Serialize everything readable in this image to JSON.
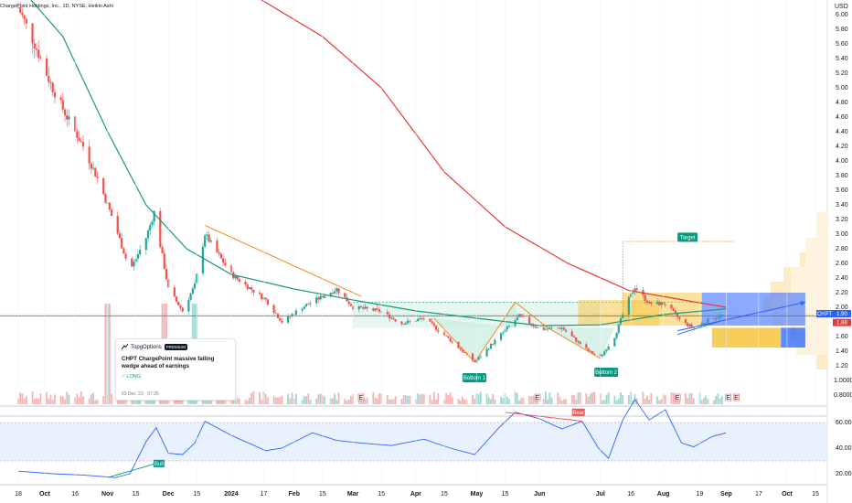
{
  "header": {
    "title": "ChargePoint Holdings, Inc., 1D, NYSE, Heikin Ashi"
  },
  "price_axis": {
    "currency": "USD",
    "labels": [
      "6.00",
      "5.80",
      "5.60",
      "5.40",
      "5.20",
      "5.00",
      "4.80",
      "4.60",
      "4.40",
      "4.20",
      "4.00",
      "3.80",
      "3.60",
      "3.40",
      "3.20",
      "3.00",
      "2.80",
      "2.60",
      "2.40",
      "2.20",
      "2.00",
      "1.80",
      "1.60",
      "1.40",
      "1.20"
    ]
  },
  "volume_axis": {
    "labels": [
      "1.0000",
      "0.8000"
    ]
  },
  "rsi_axis": {
    "labels": [
      "60.00",
      "40.00",
      "20.00"
    ]
  },
  "time_axis": {
    "labels": [
      "18",
      "Oct",
      "16",
      "Nov",
      "15",
      "Dec",
      "15",
      "2024",
      "17",
      "Feb",
      "15",
      "Mar",
      "15",
      "Apr",
      "15",
      "May",
      "15",
      "Jun",
      "Jul",
      "16",
      "Aug",
      "19",
      "Sep",
      "17",
      "Oct",
      "15"
    ]
  },
  "tags": {
    "ticker": "CHPT",
    "last_price": "1.90",
    "ref_price": "1.88"
  },
  "annotations": {
    "target": "Target",
    "bottom1": "Bottom 1",
    "bottom2": "Bottom 2",
    "bear": "Bear",
    "bull": "Bull"
  },
  "event_flags": [
    "E",
    "E",
    "E",
    "E",
    "E",
    "E"
  ],
  "idea_card": {
    "brand": "TopgOptions",
    "badge": "PREMIUM",
    "title": "CHPT ChargePoint  massive falling wedge ahead of earnings",
    "direction": "LONG",
    "date": "03 Dec '23 · 07:26"
  },
  "colors": {
    "up": "#26a69a",
    "down": "#ef5350",
    "ma_fast": "#1b9a7d",
    "ma_slow": "#e53935",
    "wedge": "#f57c00",
    "rsi": "#2962ff"
  },
  "chart_data": [
    {
      "type": "candlestick",
      "title": "",
      "x_range": [
        "2023-09-18",
        "2024-10-15"
      ],
      "ylim": [
        1.1,
        6.45
      ],
      "y_ticks": [
        6.0,
        5.8,
        5.6,
        5.4,
        5.2,
        5.0,
        4.8,
        4.6,
        4.4,
        4.2,
        4.0,
        3.8,
        3.6,
        3.4,
        3.2,
        3.0,
        2.8,
        2.6,
        2.4,
        2.2,
        2.0,
        1.8,
        1.6,
        1.4,
        1.2
      ],
      "close_path": [
        [
          "2023-09-18",
          6.1
        ],
        [
          "2023-09-26",
          5.6
        ],
        [
          "2023-10-04",
          5.05
        ],
        [
          "2023-10-12",
          4.6
        ],
        [
          "2023-10-20",
          4.2
        ],
        [
          "2023-10-28",
          3.7
        ],
        [
          "2023-11-05",
          3.1
        ],
        [
          "2023-11-12",
          2.5
        ],
        [
          "2023-11-20",
          2.95
        ],
        [
          "2023-11-24",
          3.3
        ],
        [
          "2023-12-01",
          2.25
        ],
        [
          "2023-12-08",
          1.95
        ],
        [
          "2023-12-14",
          2.3
        ],
        [
          "2023-12-19",
          3.0
        ],
        [
          "2024-01-01",
          2.45
        ],
        [
          "2024-01-18",
          2.1
        ],
        [
          "2024-01-26",
          1.8
        ],
        [
          "2024-02-05",
          2.0
        ],
        [
          "2024-02-15",
          2.15
        ],
        [
          "2024-02-22",
          2.25
        ],
        [
          "2024-03-01",
          2.0
        ],
        [
          "2024-03-14",
          1.95
        ],
        [
          "2024-03-25",
          1.78
        ],
        [
          "2024-04-05",
          1.85
        ],
        [
          "2024-04-18",
          1.55
        ],
        [
          "2024-04-30",
          1.25
        ],
        [
          "2024-05-12",
          1.6
        ],
        [
          "2024-05-22",
          1.88
        ],
        [
          "2024-06-01",
          1.7
        ],
        [
          "2024-06-12",
          1.72
        ],
        [
          "2024-06-25",
          1.4
        ],
        [
          "2024-07-01",
          1.32
        ],
        [
          "2024-07-08",
          1.6
        ],
        [
          "2024-07-14",
          2.05
        ],
        [
          "2024-07-18",
          2.28
        ],
        [
          "2024-07-25",
          2.05
        ],
        [
          "2024-08-02",
          2.05
        ],
        [
          "2024-08-10",
          1.8
        ],
        [
          "2024-08-16",
          1.72
        ],
        [
          "2024-08-25",
          1.85
        ],
        [
          "2024-09-01",
          1.9
        ]
      ],
      "moving_averages": [
        {
          "color": "#1b9a7d",
          "points": [
            [
              "2023-09-18",
              6.4
            ],
            [
              "2023-10-10",
              5.7
            ],
            [
              "2023-11-01",
              4.4
            ],
            [
              "2023-11-20",
              3.4
            ],
            [
              "2023-12-10",
              2.8
            ],
            [
              "2024-01-01",
              2.45
            ],
            [
              "2024-02-01",
              2.25
            ],
            [
              "2024-03-01",
              2.1
            ],
            [
              "2024-04-01",
              1.95
            ],
            [
              "2024-05-01",
              1.85
            ],
            [
              "2024-06-01",
              1.75
            ],
            [
              "2024-07-01",
              1.76
            ],
            [
              "2024-08-01",
              1.9
            ],
            [
              "2024-09-01",
              1.98
            ]
          ]
        },
        {
          "color": "#e53935",
          "points": [
            [
              "2024-01-01",
              6.45
            ],
            [
              "2024-02-15",
              5.7
            ],
            [
              "2024-03-15",
              5.0
            ],
            [
              "2024-04-15",
              3.85
            ],
            [
              "2024-05-15",
              3.1
            ],
            [
              "2024-06-15",
              2.6
            ],
            [
              "2024-07-15",
              2.23
            ],
            [
              "2024-08-15",
              2.08
            ],
            [
              "2024-09-01",
              2.0
            ]
          ]
        }
      ],
      "volume_spikes": [
        "2023-11-01",
        "2023-11-29",
        "2023-12-14"
      ],
      "rsi": {
        "ylim": [
          15,
          80
        ],
        "points": [
          [
            "2023-09-18",
            22
          ],
          [
            "2023-10-05",
            20
          ],
          [
            "2023-10-20",
            19
          ],
          [
            "2023-11-05",
            17
          ],
          [
            "2023-11-12",
            20
          ],
          [
            "2023-11-20",
            45
          ],
          [
            "2023-11-25",
            56
          ],
          [
            "2023-12-01",
            36
          ],
          [
            "2023-12-08",
            35
          ],
          [
            "2023-12-14",
            44
          ],
          [
            "2023-12-19",
            61
          ],
          [
            "2024-01-01",
            50
          ],
          [
            "2024-01-18",
            38
          ],
          [
            "2024-01-26",
            40
          ],
          [
            "2024-02-10",
            52
          ],
          [
            "2024-02-22",
            46
          ],
          [
            "2024-03-05",
            44
          ],
          [
            "2024-03-20",
            42
          ],
          [
            "2024-04-05",
            47
          ],
          [
            "2024-04-18",
            40
          ],
          [
            "2024-04-30",
            35
          ],
          [
            "2024-05-12",
            56
          ],
          [
            "2024-05-20",
            68
          ],
          [
            "2024-06-01",
            63
          ],
          [
            "2024-06-12",
            55
          ],
          [
            "2024-06-22",
            61
          ],
          [
            "2024-06-30",
            40
          ],
          [
            "2024-07-05",
            32
          ],
          [
            "2024-07-12",
            62
          ],
          [
            "2024-07-18",
            78
          ],
          [
            "2024-07-25",
            62
          ],
          [
            "2024-08-02",
            70
          ],
          [
            "2024-08-10",
            44
          ],
          [
            "2024-08-16",
            41
          ],
          [
            "2024-08-25",
            49
          ],
          [
            "2024-09-01",
            52
          ]
        ]
      }
    }
  ]
}
